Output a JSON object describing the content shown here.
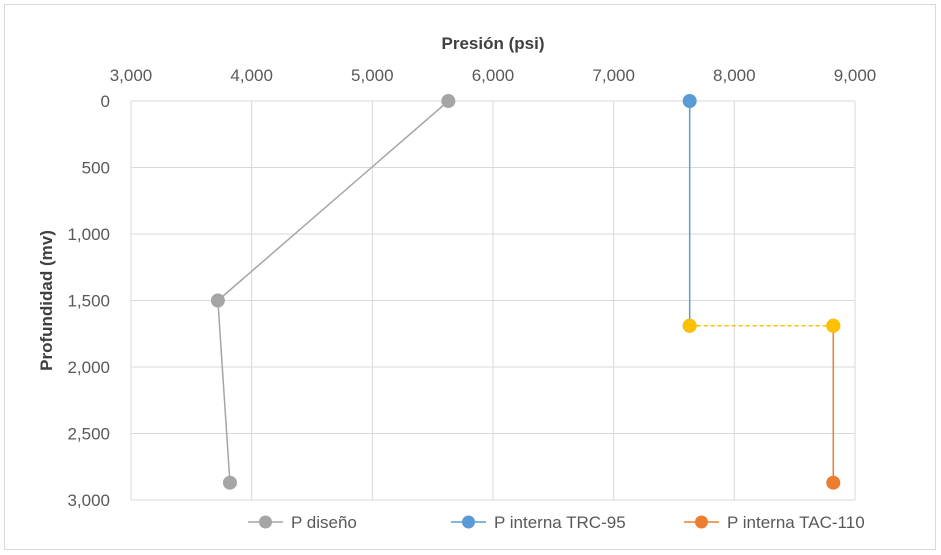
{
  "chart_data": {
    "type": "line",
    "xlabel": "Presión (psi)",
    "ylabel": "Profundidad (mv)",
    "xlim": [
      3000,
      9000
    ],
    "ylim": [
      0,
      3000
    ],
    "y_reversed": true,
    "x_axis_position": "top",
    "grid": true,
    "legend": "bottom",
    "x_ticks": [
      "3,000",
      "4,000",
      "5,000",
      "6,000",
      "7,000",
      "8,000",
      "9,000"
    ],
    "y_ticks": [
      "0",
      "500",
      "1,000",
      "1,500",
      "2,000",
      "2,500",
      "3,000"
    ],
    "series": [
      {
        "name": "P diseño",
        "color": "#a5a5a5",
        "x": [
          5630,
          3720,
          3820
        ],
        "y": [
          0,
          1500,
          2870
        ]
      },
      {
        "name": "P interna TRC-95",
        "color": "#5b9bd5",
        "x": [
          7630,
          7630
        ],
        "y": [
          0,
          1690
        ]
      },
      {
        "name": "P interna TAC-110",
        "color": "#ed7d31",
        "x": [
          8820,
          8820
        ],
        "y": [
          1690,
          2870
        ]
      }
    ],
    "connector": {
      "color": "#ffc000",
      "style": "dashed",
      "x": [
        7630,
        8820
      ],
      "y": [
        1690,
        1690
      ]
    }
  }
}
